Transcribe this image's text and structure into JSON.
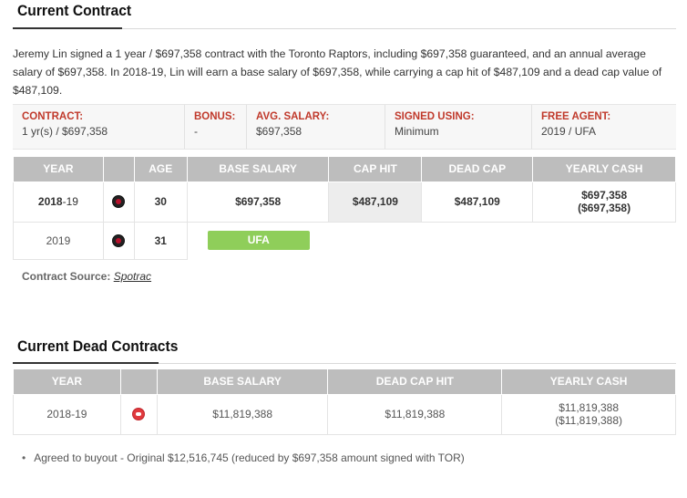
{
  "current_contract": {
    "title": "Current Contract",
    "summary": "Jeremy Lin signed a 1 year / $697,358 contract with the Toronto Raptors, including $697,358 guaranteed, and an annual average salary of $697,358. In 2018-19, Lin will earn a base salary of $697,358, while carrying a cap hit of $487,109 and a dead cap value of $487,109.",
    "info": {
      "contract_label": "CONTRACT:",
      "contract_value": "1 yr(s) / $697,358",
      "bonus_label": "BONUS:",
      "bonus_value": "-",
      "avg_salary_label": "AVG. SALARY:",
      "avg_salary_value": "$697,358",
      "signed_using_label": "SIGNED USING:",
      "signed_using_value": "Minimum",
      "free_agent_label": "FREE AGENT:",
      "free_agent_value": "2019 / UFA"
    },
    "table": {
      "headers": {
        "year": "YEAR",
        "team": "",
        "age": "AGE",
        "base_salary": "BASE SALARY",
        "cap_hit": "CAP HIT",
        "dead_cap": "DEAD CAP",
        "yearly_cash": "YEARLY CASH"
      },
      "rows": [
        {
          "year_start": "2018",
          "year_end": "-19",
          "team_icon": "raptors-logo-icon",
          "age": "30",
          "base_salary": "$697,358",
          "cap_hit": "$487,109",
          "dead_cap": "$487,109",
          "yearly_cash": "$697,358",
          "yearly_cash_cumulative": "($697,358)"
        },
        {
          "year": "2019",
          "team_icon": "raptors-logo-icon",
          "age": "31",
          "status": "UFA"
        }
      ]
    },
    "source_label": "Contract Source:",
    "source_link": "Spotrac"
  },
  "dead_contracts": {
    "title": "Current Dead Contracts",
    "table": {
      "headers": {
        "year": "YEAR",
        "team": "",
        "base_salary": "BASE SALARY",
        "dead_cap_hit": "DEAD CAP HIT",
        "yearly_cash": "YEARLY CASH"
      },
      "rows": [
        {
          "year": "2018-19",
          "team_icon": "hawks-logo-icon",
          "base_salary": "$11,819,388",
          "dead_cap_hit": "$11,819,388",
          "yearly_cash": "$11,819,388",
          "yearly_cash_cumulative": "($11,819,388)"
        }
      ]
    },
    "notes": [
      "Agreed to buyout - Original $12,516,745 (reduced by $697,358 amount signed with TOR)"
    ]
  },
  "colors": {
    "accent_red": "#c0392b",
    "header_gray": "#bdbdbd",
    "ufa_green": "#8fce5a"
  }
}
